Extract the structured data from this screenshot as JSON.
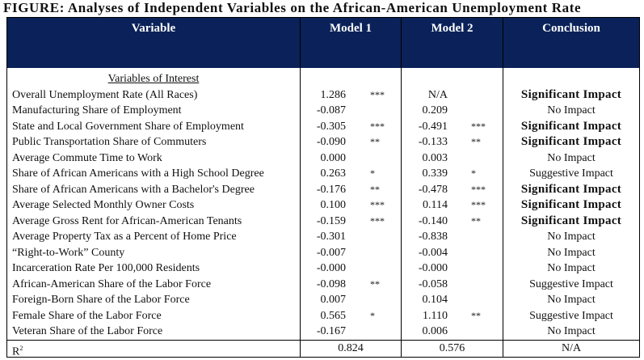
{
  "title": "FIGURE: Analyses of Independent Variables on the African-American Unemployment Rate",
  "header": {
    "variable": "Variable",
    "model1": "Model 1",
    "model2": "Model 2",
    "conclusion": "Conclusion"
  },
  "header_color": "#0a2259",
  "section": "Variables of Interest",
  "rows": [
    {
      "variable": "Overall Unemployment Rate (All Races)",
      "m1": "1.286",
      "s1": "***",
      "m2": "N/A",
      "s2": "",
      "conclusion": "Significant Impact",
      "bold": true
    },
    {
      "variable": "Manufacturing Share of Employment",
      "m1": "-0.087",
      "s1": "",
      "m2": "0.209",
      "s2": "",
      "conclusion": "No Impact",
      "bold": false
    },
    {
      "variable": "State and Local Government Share of Employment",
      "m1": "-0.305",
      "s1": "***",
      "m2": "-0.491",
      "s2": "***",
      "conclusion": "Significant Impact",
      "bold": true
    },
    {
      "variable": "Public Transportation Share of Commuters",
      "m1": "-0.090",
      "s1": "**",
      "m2": "-0.133",
      "s2": "**",
      "conclusion": "Significant Impact",
      "bold": true
    },
    {
      "variable": "Average Commute Time to Work",
      "m1": "0.000",
      "s1": "",
      "m2": "0.003",
      "s2": "",
      "conclusion": "No Impact",
      "bold": false
    },
    {
      "variable": "Share of African Americans with a High School Degree",
      "m1": "0.263",
      "s1": "*",
      "m2": "0.339",
      "s2": "*",
      "conclusion": "Suggestive Impact",
      "bold": false
    },
    {
      "variable": "Share of African Americans with a Bachelor's Degree",
      "m1": "-0.176",
      "s1": "**",
      "m2": "-0.478",
      "s2": "***",
      "conclusion": "Significant Impact",
      "bold": true
    },
    {
      "variable": "Average Selected Monthly Owner Costs",
      "m1": "0.100",
      "s1": "***",
      "m2": "0.114",
      "s2": "***",
      "conclusion": "Significant Impact",
      "bold": true
    },
    {
      "variable": "Average Gross Rent for African-American Tenants",
      "m1": "-0.159",
      "s1": "***",
      "m2": "-0.140",
      "s2": "**",
      "conclusion": "Significant Impact",
      "bold": true
    },
    {
      "variable": "Average Property Tax as a Percent of Home Price",
      "m1": "-0.301",
      "s1": "",
      "m2": "-0.838",
      "s2": "",
      "conclusion": "No Impact",
      "bold": false
    },
    {
      "variable": "“Right-to-Work” County",
      "m1": "-0.007",
      "s1": "",
      "m2": "-0.004",
      "s2": "",
      "conclusion": "No Impact",
      "bold": false
    },
    {
      "variable": "Incarceration Rate Per 100,000 Residents",
      "m1": "-0.000",
      "s1": "",
      "m2": "-0.000",
      "s2": "",
      "conclusion": "No Impact",
      "bold": false
    },
    {
      "variable": "African-American Share of the Labor Force",
      "m1": "-0.098",
      "s1": "**",
      "m2": "-0.058",
      "s2": "",
      "conclusion": "Suggestive Impact",
      "bold": false
    },
    {
      "variable": "Foreign-Born Share of the Labor Force",
      "m1": "0.007",
      "s1": "",
      "m2": "0.104",
      "s2": "",
      "conclusion": "No Impact",
      "bold": false
    },
    {
      "variable": "Female Share of the Labor Force",
      "m1": "0.565",
      "s1": "*",
      "m2": "1.110",
      "s2": "**",
      "conclusion": "Suggestive Impact",
      "bold": false
    },
    {
      "variable": "Veteran Share of the Labor Force",
      "m1": "-0.167",
      "s1": "",
      "m2": "0.006",
      "s2": "",
      "conclusion": "No Impact",
      "bold": false
    }
  ],
  "r2": {
    "label": "R",
    "sup": "2",
    "m1": "0.824",
    "m2": "0.576",
    "conclusion": "N/A"
  }
}
